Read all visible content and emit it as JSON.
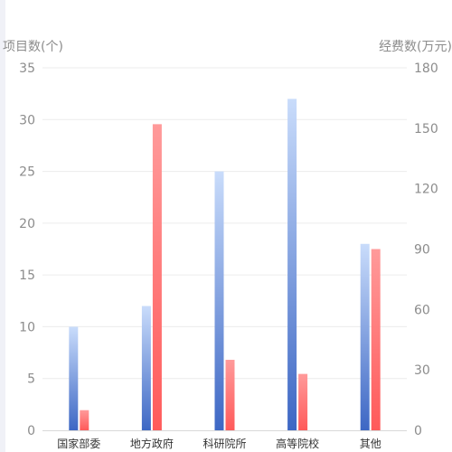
{
  "chart_data": {
    "type": "bar",
    "categories": [
      "国家部委",
      "地方政府",
      "科研院所",
      "高等院校",
      "其他"
    ],
    "series": [
      {
        "name": "项目数",
        "axis": "left",
        "values": [
          10,
          12,
          25,
          32,
          18
        ],
        "color_top": "#c9dcfb",
        "color_bottom": "#3d67c4"
      },
      {
        "name": "经费数",
        "axis": "right",
        "values": [
          10,
          152,
          35,
          28,
          90
        ],
        "color_top": "#ff9a9a",
        "color_bottom": "#ff5a5a"
      }
    ],
    "yaxis_left": {
      "label": "项目数(个)",
      "min": 0,
      "max": 35,
      "ticks": [
        0,
        5,
        10,
        15,
        20,
        25,
        30,
        35
      ]
    },
    "yaxis_right": {
      "label": "经费数(万元)",
      "min": 0,
      "max": 180,
      "ticks": [
        0,
        30,
        60,
        90,
        120,
        150,
        180
      ]
    },
    "grid": true,
    "legend": "none"
  }
}
